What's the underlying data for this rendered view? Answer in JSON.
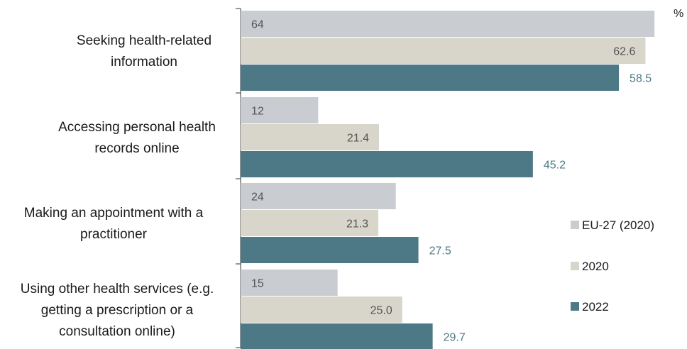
{
  "chart_data": {
    "type": "bar",
    "orientation": "horizontal",
    "unit": "%",
    "categories": [
      [
        "Seeking health-related",
        "information"
      ],
      [
        "Accessing personal health",
        "records online"
      ],
      [
        "Making an appointment with a",
        "practitioner"
      ],
      [
        "Using other health services (e.g.",
        "getting a prescription or a",
        "consultation online)"
      ]
    ],
    "series": [
      {
        "name": "EU-27 (2020)",
        "color": "#c9ccd0",
        "label_color": "#555555",
        "label_align": "inside-left",
        "values": [
          64,
          12,
          24,
          15
        ],
        "labels": [
          "64",
          "12",
          "24",
          "15"
        ]
      },
      {
        "name": "2020",
        "color": "#d8d5cb",
        "label_color": "#555555",
        "label_align": "inside-right",
        "values": [
          62.6,
          21.4,
          21.3,
          25.0
        ],
        "labels": [
          "62.6",
          "21.4",
          "21.3",
          "25.0"
        ]
      },
      {
        "name": "2022",
        "color": "#4d7886",
        "label_color": "#4d7886",
        "label_align": "outside-right",
        "values": [
          58.5,
          45.2,
          27.5,
          29.7
        ],
        "labels": [
          "58.5",
          "45.2",
          "27.5",
          "29.7"
        ]
      }
    ],
    "xlim": [
      0,
      64.2
    ],
    "legend_position": "right",
    "grid": false
  }
}
